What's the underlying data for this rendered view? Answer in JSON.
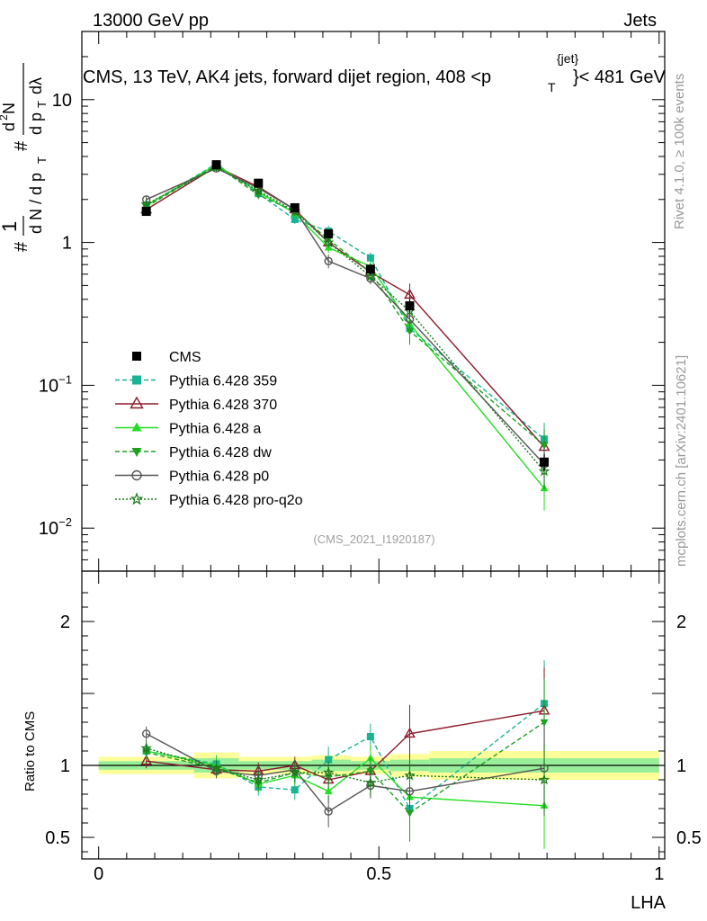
{
  "header": {
    "left": "13000 GeV pp",
    "right": "Jets"
  },
  "side_labels": {
    "rivet": "Rivet 4.1.0, ≥ 100k events",
    "mcplots": "mcplots.cern.ch [arXiv:2401.10621]"
  },
  "chart_data": {
    "type": "line",
    "title_main": "CMS, 13 TeV, AK4 jets, forward dijet region, 408 <p",
    "title_sub": "T",
    "title_sup": "{jet}",
    "title_end": "}< 481 GeV",
    "watermark": "(CMS_2021_I1920187)",
    "xlabel": "LHA",
    "ylabel_main": "# 1/dN/dpT # d²N/dpT dλ",
    "ylabel_ratio": "Ratio to CMS",
    "xlim": [
      -0.03,
      1.01
    ],
    "ylim_main": [
      0.005,
      30
    ],
    "ylim_ratio": [
      0.35,
      2.35
    ],
    "x_ticks": [
      {
        "v": 0,
        "label": "0"
      },
      {
        "v": 0.5,
        "label": "0.5"
      },
      {
        "v": 1,
        "label": "1"
      }
    ],
    "y_ticks_main": [
      {
        "v": 10,
        "base": "10",
        "exp": ""
      },
      {
        "v": 1,
        "base": "1",
        "exp": ""
      },
      {
        "v": 0.1,
        "base": "10",
        "exp": "−1"
      },
      {
        "v": 0.01,
        "base": "10",
        "exp": "−2"
      }
    ],
    "y_ticks_ratio": [
      {
        "v": 2,
        "label": "2"
      },
      {
        "v": 1,
        "label": "1"
      },
      {
        "v": 0.5,
        "label": "0.5"
      }
    ],
    "x": [
      0.085,
      0.21,
      0.285,
      0.35,
      0.41,
      0.485,
      0.555,
      0.795
    ],
    "bin_edges": [
      0,
      0.17,
      0.25,
      0.32,
      0.38,
      0.45,
      0.52,
      0.59,
      1.0
    ],
    "cms": {
      "name": "CMS",
      "values": [
        1.65,
        3.5,
        2.6,
        1.75,
        1.15,
        0.65,
        0.36,
        0.029
      ],
      "errors": [
        0.06,
        0.1,
        0.08,
        0.07,
        0.07,
        0.05,
        0.04,
        0.004
      ]
    },
    "band_outer": [
      0.06,
      0.09,
      0.06,
      0.06,
      0.07,
      0.06,
      0.08,
      0.1
    ],
    "band_inner": [
      0.03,
      0.05,
      0.03,
      0.03,
      0.04,
      0.03,
      0.04,
      0.05
    ],
    "series": [
      {
        "name": "Pythia 6.428 359",
        "color": "#1ab394",
        "dash": "5,3",
        "marker": "square",
        "values": [
          1.82,
          3.55,
          2.2,
          1.45,
          1.2,
          0.78,
          0.25,
          0.042
        ],
        "ratio": [
          1.1,
          1.01,
          0.85,
          0.83,
          1.04,
          1.2,
          0.7,
          1.43
        ],
        "rerr": [
          0.05,
          0.06,
          0.06,
          0.07,
          0.09,
          0.09,
          0.12,
          0.3
        ]
      },
      {
        "name": "Pythia 6.428 370",
        "color": "#8b1a2b",
        "dash": "",
        "marker": "triangle-open",
        "values": [
          1.7,
          3.4,
          2.45,
          1.7,
          1.0,
          0.62,
          0.43,
          0.037
        ],
        "ratio": [
          1.03,
          0.97,
          0.96,
          1.0,
          0.9,
          0.96,
          1.22,
          1.38
        ],
        "rerr": [
          0.05,
          0.05,
          0.06,
          0.06,
          0.08,
          0.08,
          0.2,
          0.3
        ]
      },
      {
        "name": "Pythia 6.428 a",
        "color": "#22dd22",
        "dash": "",
        "marker": "triangle",
        "values": [
          1.82,
          3.5,
          2.25,
          1.6,
          0.92,
          0.68,
          0.27,
          0.019
        ],
        "ratio": [
          1.1,
          1.0,
          0.87,
          0.93,
          0.82,
          1.05,
          0.78,
          0.72
        ],
        "rerr": [
          0.05,
          0.06,
          0.06,
          0.07,
          0.08,
          0.09,
          0.15,
          0.3
        ]
      },
      {
        "name": "Pythia 6.428 dw",
        "color": "#1fa01f",
        "dash": "5,3",
        "marker": "triangle-down",
        "values": [
          1.78,
          3.45,
          2.15,
          1.65,
          1.05,
          0.62,
          0.24,
          0.038
        ],
        "ratio": [
          1.09,
          0.98,
          0.88,
          0.95,
          0.92,
          0.96,
          0.67,
          1.3
        ],
        "rerr": [
          0.05,
          0.06,
          0.06,
          0.07,
          0.08,
          0.09,
          0.2,
          0.3
        ]
      },
      {
        "name": "Pythia 6.428 p0",
        "color": "#555555",
        "dash": "",
        "marker": "circle-open",
        "values": [
          2.0,
          3.3,
          2.4,
          1.7,
          0.74,
          0.56,
          0.29,
          0.028
        ],
        "ratio": [
          1.22,
          0.96,
          0.93,
          0.97,
          0.68,
          0.86,
          0.82,
          0.98
        ],
        "rerr": [
          0.05,
          0.05,
          0.06,
          0.07,
          0.11,
          0.09,
          0.12,
          0.3
        ]
      },
      {
        "name": "Pythia 6.428 pro-q2o",
        "color": "#1a7a1a",
        "dash": "2,2",
        "marker": "star",
        "values": [
          1.85,
          3.35,
          2.3,
          1.65,
          1.0,
          0.58,
          0.33,
          0.025
        ],
        "ratio": [
          1.12,
          0.98,
          0.9,
          0.95,
          0.95,
          0.88,
          0.93,
          0.9
        ],
        "rerr": [
          0.05,
          0.05,
          0.06,
          0.07,
          0.08,
          0.09,
          0.12,
          0.25
        ]
      }
    ]
  }
}
